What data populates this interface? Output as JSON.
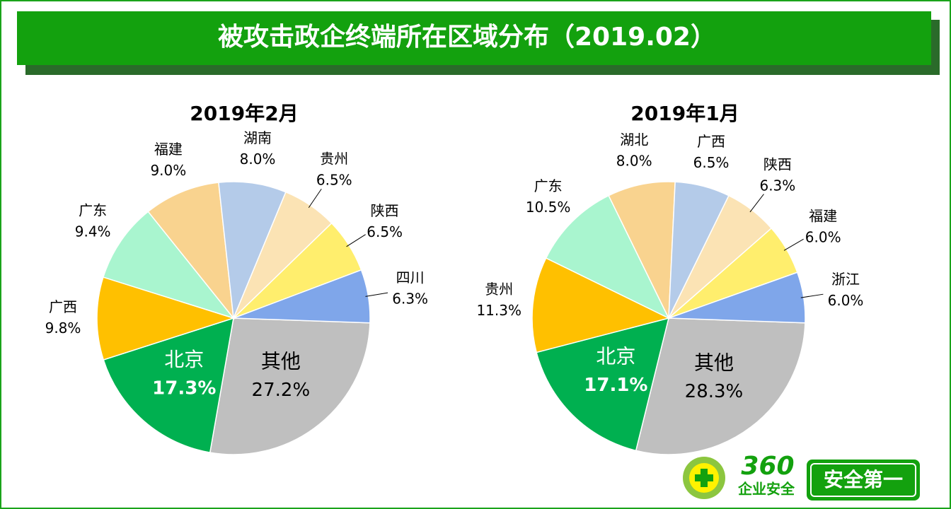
{
  "header": {
    "title": "被攻击政企终端所在区域分布（2019.02）"
  },
  "logo": {
    "brand": "360",
    "sub": "企业安全",
    "slogan": "安全第一"
  },
  "chart_data": [
    {
      "type": "pie",
      "title": "2019年2月",
      "categories": [
        "其他",
        "北京",
        "广西",
        "广东",
        "福建",
        "湖南",
        "贵州",
        "陕西",
        "四川"
      ],
      "values": [
        27.2,
        17.3,
        9.8,
        9.4,
        9.0,
        8.0,
        6.5,
        6.5,
        6.3
      ],
      "value_labels": [
        "27.2%",
        "17.3%",
        "9.8%",
        "9.4%",
        "9.0%",
        "8.0%",
        "6.5%",
        "6.5%",
        "6.3%"
      ],
      "colors": [
        "#bfbfbf",
        "#00b050",
        "#ffc000",
        "#a9f5cf",
        "#f9d38f",
        "#b4cbe9",
        "#fbe3b4",
        "#ffee6d",
        "#7fa6ea"
      ]
    },
    {
      "type": "pie",
      "title": "2019年1月",
      "categories": [
        "其他",
        "北京",
        "贵州",
        "广东",
        "湖北",
        "广西",
        "陕西",
        "福建",
        "浙江"
      ],
      "values": [
        28.3,
        17.1,
        11.3,
        10.5,
        8.0,
        6.5,
        6.3,
        6.0,
        6.0
      ],
      "value_labels": [
        "28.3%",
        "17.1%",
        "11.3%",
        "10.5%",
        "8.0%",
        "6.5%",
        "6.3%",
        "6.0%",
        "6.0%"
      ],
      "colors": [
        "#bfbfbf",
        "#00b050",
        "#ffc000",
        "#a9f5cf",
        "#f9d38f",
        "#b4cbe9",
        "#fbe3b4",
        "#ffee6d",
        "#7fa6ea"
      ]
    }
  ]
}
